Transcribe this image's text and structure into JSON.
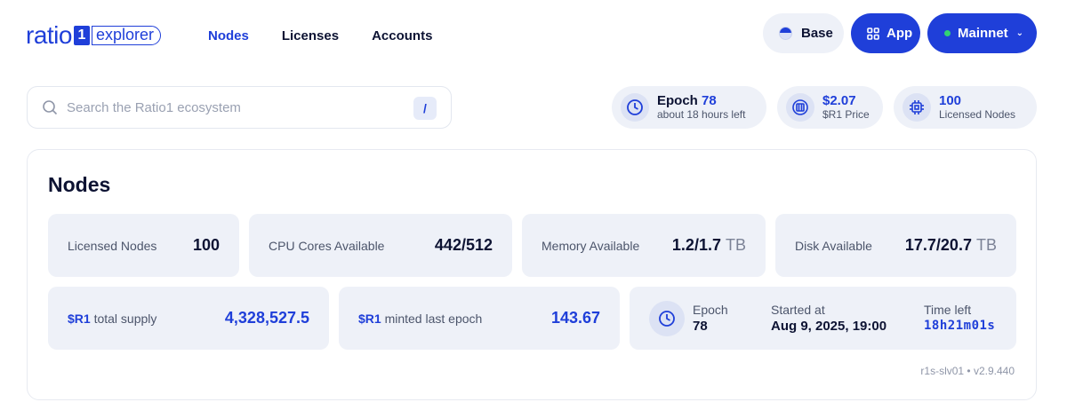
{
  "logo": {
    "ratio": "ratio",
    "one": "1",
    "explorer": "explorer"
  },
  "nav": [
    {
      "label": "Nodes",
      "active": true
    },
    {
      "label": "Licenses",
      "active": false
    },
    {
      "label": "Accounts",
      "active": false
    }
  ],
  "header_buttons": {
    "base": "Base",
    "app": "App",
    "network": "Mainnet"
  },
  "search": {
    "placeholder": "Search the Ratio1 ecosystem",
    "shortcut": "/"
  },
  "chips": {
    "epoch": {
      "label": "Epoch",
      "value": "78",
      "sub": "about 18 hours left"
    },
    "price": {
      "value": "$2.07",
      "sub": "$R1 Price"
    },
    "nodes": {
      "value": "100",
      "sub": "Licensed Nodes"
    }
  },
  "card": {
    "title": "Nodes",
    "tiles": {
      "licensed_nodes": {
        "label": "Licensed Nodes",
        "value": "100"
      },
      "cpu": {
        "label": "CPU Cores Available",
        "value": "442/512"
      },
      "memory": {
        "label": "Memory Available",
        "value": "1.2/1.7",
        "unit": "TB"
      },
      "disk": {
        "label": "Disk Available",
        "value": "17.7/20.7",
        "unit": "TB"
      },
      "supply": {
        "token": "$R1",
        "label": " total supply",
        "value": "4,328,527.5"
      },
      "minted": {
        "token": "$R1",
        "label": " minted last epoch",
        "value": "143.67"
      }
    },
    "epoch_tile": {
      "epoch_label": "Epoch",
      "epoch_value": "78",
      "started_label": "Started at",
      "started_value": "Aug 9, 2025, 19:00",
      "left_label": "Time left",
      "left_value": "18h21m01s"
    },
    "version": "r1s-slv01 • v2.9.440"
  },
  "colors": {
    "accent": "#1f3fd9",
    "tile_bg": "#eef1f8",
    "status_green": "#32d274"
  }
}
